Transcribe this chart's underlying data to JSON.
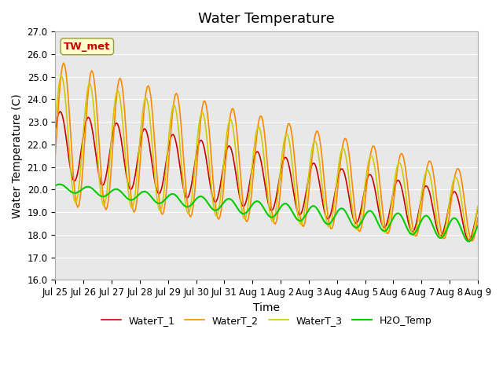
{
  "title": "Water Temperature",
  "xlabel": "Time",
  "ylabel": "Water Temperature (C)",
  "ylim": [
    16.0,
    27.0
  ],
  "yticks": [
    16.0,
    17.0,
    18.0,
    19.0,
    20.0,
    21.0,
    22.0,
    23.0,
    24.0,
    25.0,
    26.0,
    27.0
  ],
  "xtick_labels": [
    "Jul 25",
    "Jul 26",
    "Jul 27",
    "Jul 28",
    "Jul 29",
    "Jul 30",
    "Jul 31",
    "Aug 1",
    "Aug 2",
    "Aug 3",
    "Aug 4",
    "Aug 5",
    "Aug 6",
    "Aug 7",
    "Aug 8",
    "Aug 9"
  ],
  "colors": {
    "WaterT_1": "#cc0000",
    "WaterT_2": "#ff8800",
    "WaterT_3": "#cccc00",
    "H2O_Temp": "#00cc00"
  },
  "annotation_text": "TW_met",
  "annotation_color": "#cc0000",
  "annotation_bg": "#ffffcc",
  "background_color": "#e8e8e8",
  "figure_color": "#ffffff",
  "grid_color": "#ffffff",
  "title_fontsize": 13,
  "axis_label_fontsize": 10,
  "tick_fontsize": 8.5,
  "legend_fontsize": 9
}
